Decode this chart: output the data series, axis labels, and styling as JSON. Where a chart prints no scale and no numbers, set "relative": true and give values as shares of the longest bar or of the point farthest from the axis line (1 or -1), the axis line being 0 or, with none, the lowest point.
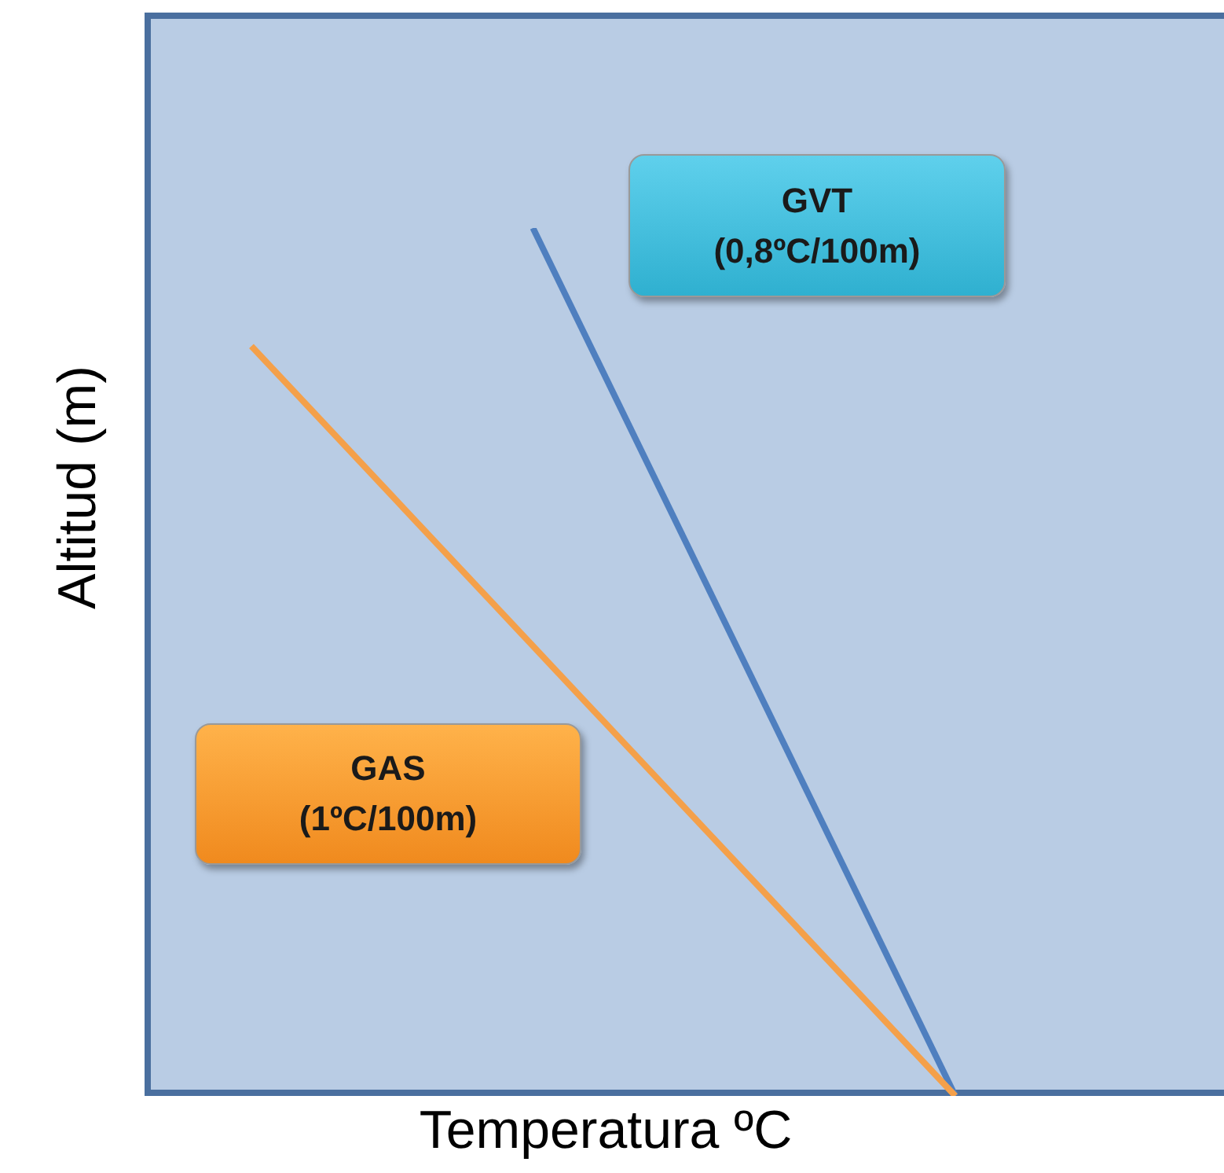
{
  "chart_data": {
    "type": "line",
    "relative": true,
    "xlabel": "Temperatura ºC",
    "ylabel": "Altitud (m)",
    "categories": [
      null,
      null,
      null,
      null,
      null,
      null
    ],
    "tick_labels": false,
    "grid": false,
    "legend": false,
    "marker": "none",
    "line_style": "solid",
    "series": [
      {
        "color": "#4f7fbf",
        "values": [
          null,
          null,
          1,
          null,
          null,
          0
        ]
      },
      {
        "color": "#f4a04a",
        "values": [
          0.864,
          null,
          null,
          null,
          null,
          0
        ]
      }
    ],
    "annotations": [
      "GVT\n(0,8ºC/100m)",
      "GAS\n(1ºC/100m)"
    ]
  }
}
